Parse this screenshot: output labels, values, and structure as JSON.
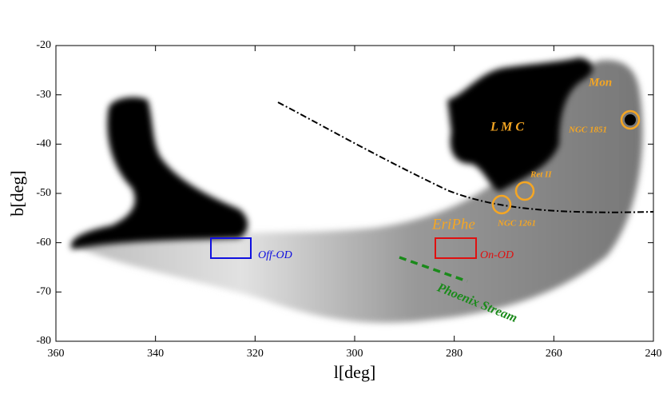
{
  "chart_data": {
    "type": "skymap",
    "x_label": "l[deg]",
    "y_label": "b[deg]",
    "xlim": [
      360,
      240
    ],
    "ylim": [
      -80,
      -20
    ],
    "xticks": [
      360,
      340,
      320,
      300,
      280,
      260,
      240
    ],
    "yticks": [
      -80,
      -70,
      -60,
      -50,
      -40,
      -30,
      -20
    ],
    "annotations": {
      "mon": "Mon",
      "lmc": "L M C",
      "ngc1851": "NGC 1851",
      "ret2": "Ret II",
      "ngc1261": "NGC 1261",
      "eriphe": "EriPhe",
      "off_od": "Off-OD",
      "on_od": "On-OD",
      "phoenix": "Phoenix Stream"
    }
  }
}
